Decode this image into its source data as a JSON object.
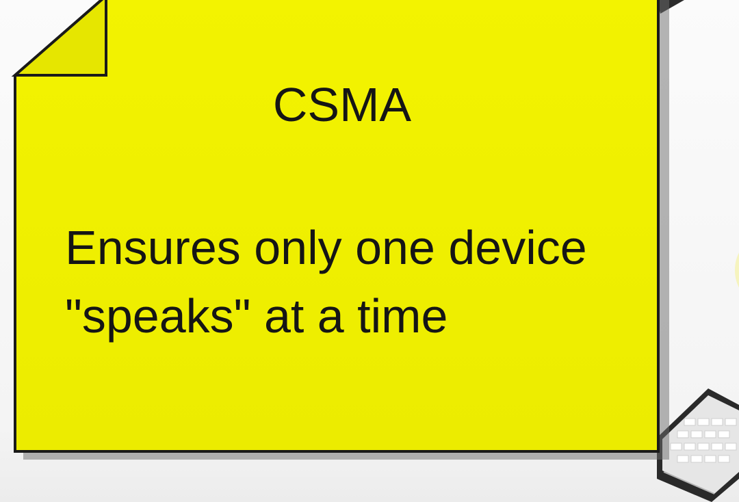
{
  "note": {
    "title": "CSMA",
    "body": "Ensures only one device \"speaks\" at a time"
  },
  "colors": {
    "note_fill": "#f2f200",
    "note_stroke": "#1a1a1a",
    "text": "#151515"
  },
  "icons": {
    "note_corner": "folded-corner",
    "keyboard": "keyboard-icon"
  }
}
